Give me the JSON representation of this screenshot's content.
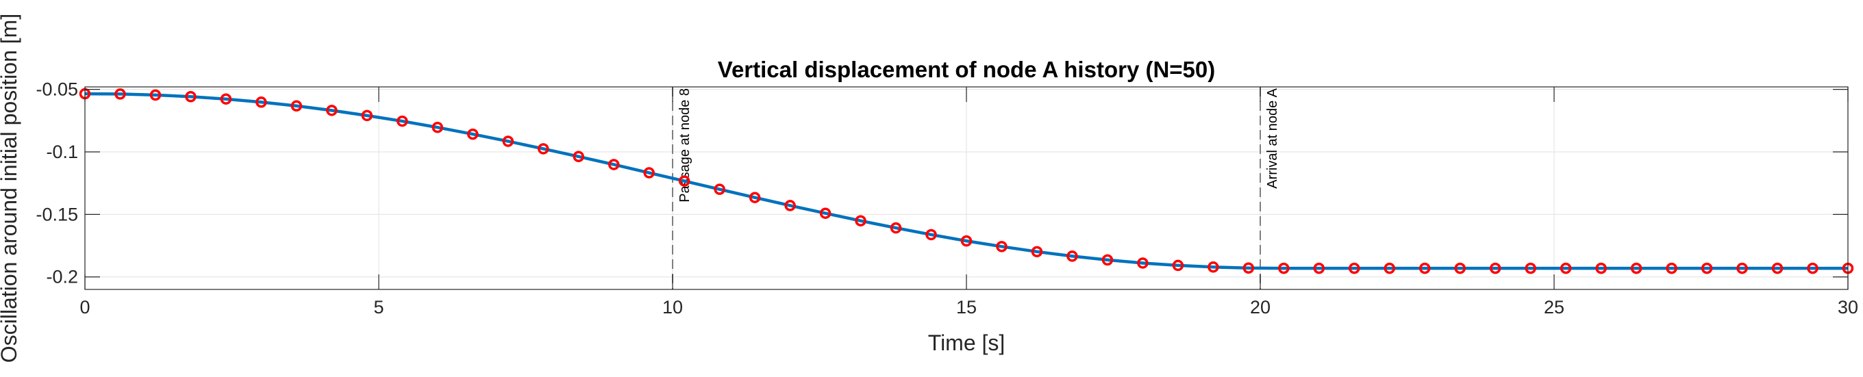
{
  "chart_data": {
    "type": "line",
    "title": "Vertical displacement of node A history (N=50)",
    "xlabel": "Time [s]",
    "ylabel": "Oscillation around initial position [m]",
    "xlim": [
      0,
      30
    ],
    "ylim": [
      -0.21,
      -0.048
    ],
    "grid": true,
    "xticks": [
      0,
      5,
      10,
      15,
      20,
      25,
      30
    ],
    "xtick_labels": [
      "0",
      "5",
      "10",
      "15",
      "20",
      "25",
      "30"
    ],
    "yticks": [
      -0.05,
      -0.1,
      -0.15,
      -0.2
    ],
    "ytick_labels": [
      "-0.05",
      "-0.1",
      "-0.15",
      "-0.2"
    ],
    "annotations": [
      {
        "x": 10,
        "text": "Passage at node 8"
      },
      {
        "x": 20,
        "text": "Arrival at node A"
      }
    ],
    "series": [
      {
        "style": "line",
        "color": "#0072BD",
        "x": [
          0,
          0.6,
          1.2,
          1.8,
          2.4,
          3.0,
          3.6,
          4.2,
          4.8,
          5.4,
          6.0,
          6.6,
          7.2,
          7.8,
          8.4,
          9.0,
          9.6,
          10.2,
          10.8,
          11.4,
          12.0,
          12.6,
          13.2,
          13.8,
          14.4,
          15.0,
          15.6,
          16.2,
          16.8,
          17.4,
          18.0,
          18.6,
          19.2,
          19.8,
          20.4,
          21.0,
          21.6,
          22.2,
          22.8,
          23.4,
          24.0,
          24.6,
          25.2,
          25.8,
          26.4,
          27.0,
          27.6,
          28.2,
          28.8,
          29.4,
          30.0
        ],
        "y": [
          -0.0535,
          -0.0537,
          -0.0545,
          -0.0558,
          -0.0577,
          -0.0602,
          -0.0632,
          -0.0668,
          -0.0709,
          -0.0754,
          -0.0804,
          -0.0858,
          -0.0915,
          -0.0975,
          -0.1037,
          -0.1101,
          -0.1167,
          -0.1233,
          -0.1299,
          -0.1365,
          -0.1429,
          -0.1491,
          -0.1551,
          -0.1608,
          -0.1662,
          -0.1712,
          -0.1757,
          -0.1798,
          -0.1834,
          -0.1864,
          -0.1889,
          -0.1908,
          -0.1921,
          -0.1929,
          -0.1931,
          -0.1931,
          -0.1931,
          -0.1931,
          -0.1931,
          -0.1931,
          -0.1931,
          -0.1931,
          -0.1931,
          -0.1931,
          -0.1931,
          -0.1931,
          -0.1931,
          -0.1931,
          -0.1931,
          -0.1931,
          -0.1931
        ]
      },
      {
        "style": "markers",
        "marker": "circle",
        "color": "#FF0000",
        "x": [
          0,
          0.6,
          1.2,
          1.8,
          2.4,
          3.0,
          3.6,
          4.2,
          4.8,
          5.4,
          6.0,
          6.6,
          7.2,
          7.8,
          8.4,
          9.0,
          9.6,
          10.2,
          10.8,
          11.4,
          12.0,
          12.6,
          13.2,
          13.8,
          14.4,
          15.0,
          15.6,
          16.2,
          16.8,
          17.4,
          18.0,
          18.6,
          19.2,
          19.8,
          20.4,
          21.0,
          21.6,
          22.2,
          22.8,
          23.4,
          24.0,
          24.6,
          25.2,
          25.8,
          26.4,
          27.0,
          27.6,
          28.2,
          28.8,
          29.4,
          30.0
        ],
        "y": [
          -0.0535,
          -0.0537,
          -0.0545,
          -0.0558,
          -0.0577,
          -0.0602,
          -0.0632,
          -0.0668,
          -0.0709,
          -0.0754,
          -0.0804,
          -0.0858,
          -0.0915,
          -0.0975,
          -0.1037,
          -0.1101,
          -0.1167,
          -0.1233,
          -0.1299,
          -0.1365,
          -0.1429,
          -0.1491,
          -0.1551,
          -0.1608,
          -0.1662,
          -0.1712,
          -0.1757,
          -0.1798,
          -0.1834,
          -0.1864,
          -0.1889,
          -0.1908,
          -0.1921,
          -0.1929,
          -0.1931,
          -0.1931,
          -0.1931,
          -0.1931,
          -0.1931,
          -0.1931,
          -0.1931,
          -0.1931,
          -0.1931,
          -0.1931,
          -0.1931,
          -0.1931,
          -0.1931,
          -0.1931,
          -0.1931,
          -0.1931,
          -0.1931
        ]
      }
    ]
  }
}
